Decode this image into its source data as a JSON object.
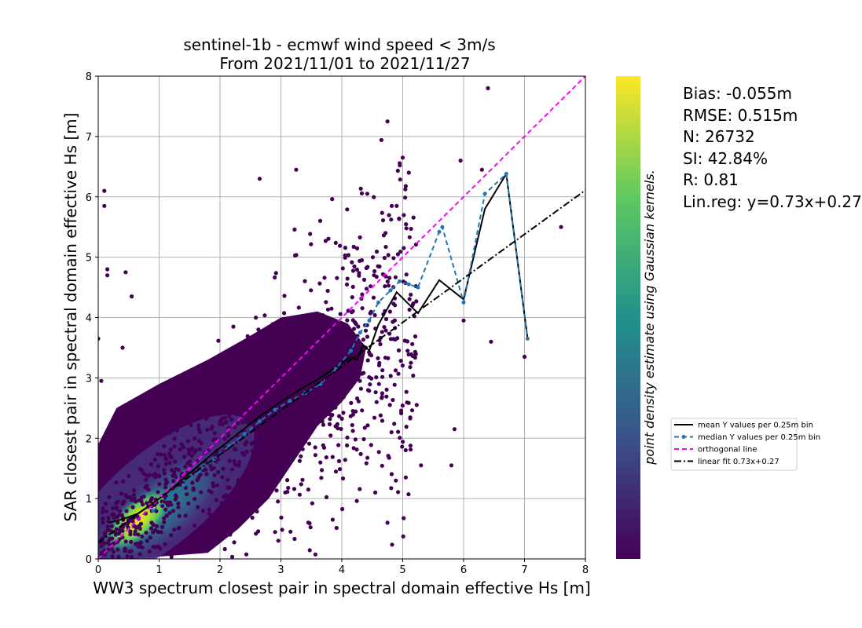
{
  "chart_data": {
    "type": "scatter",
    "title": [
      "sentinel-1b - ecmwf wind speed < 3m/s",
      "From 2021/11/01 to 2021/11/27"
    ],
    "xlabel": "WW3 spectrum closest pair in spectral domain effective Hs [m]",
    "ylabel": "SAR closest pair in spectral domain effective Hs [m]",
    "xlim": [
      0,
      8
    ],
    "ylim": [
      0,
      8
    ],
    "xticks": [
      "0",
      "1",
      "2",
      "3",
      "4",
      "5",
      "6",
      "7",
      "8"
    ],
    "yticks": [
      "0",
      "1",
      "2",
      "3",
      "4",
      "5",
      "6",
      "7",
      "8"
    ],
    "grid": true,
    "colorbar_label": "point density estimate using Gaussian kernels.",
    "colormap": [
      "#440154",
      "#3b528b",
      "#21918c",
      "#5ec962",
      "#fde725"
    ],
    "stats": [
      "Bias: -0.055m",
      "RMSE: 0.515m",
      "N: 26732",
      "SI: 42.84%",
      "R: 0.81",
      "Lin.reg: y=0.73x+0.27"
    ],
    "legend_position": "center-right, outside axes",
    "series": [
      {
        "name": "mean Y values per 0.25m bin",
        "style": "solid",
        "color": "#000000",
        "x": [
          0.18,
          0.4,
          0.65,
          0.9,
          1.15,
          1.4,
          1.65,
          1.9,
          2.15,
          2.4,
          2.65,
          2.9,
          3.15,
          3.4,
          3.65,
          3.9,
          4.15,
          4.25,
          4.35,
          4.45,
          4.6,
          4.9,
          5.25,
          5.6,
          6.0,
          6.35,
          6.7,
          7.05
        ],
        "y": [
          0.6,
          0.66,
          0.75,
          0.92,
          1.12,
          1.33,
          1.55,
          1.76,
          1.96,
          2.16,
          2.36,
          2.54,
          2.7,
          2.86,
          3.0,
          3.18,
          3.35,
          3.3,
          3.55,
          3.45,
          3.88,
          4.42,
          4.07,
          4.62,
          4.3,
          5.8,
          6.38,
          3.65
        ]
      },
      {
        "name": "median Y values per 0.25m bin",
        "style": "dashed",
        "marker": "dot",
        "color": "#1f77b4",
        "x": [
          0.9,
          1.15,
          1.4,
          1.65,
          1.9,
          2.15,
          2.4,
          2.65,
          2.9,
          3.15,
          3.4,
          3.65,
          3.9,
          4.15,
          4.3,
          4.45,
          4.6,
          4.8,
          4.95,
          5.1,
          5.25,
          5.6,
          5.65,
          6.0,
          6.35,
          6.7,
          7.05
        ],
        "y": [
          0.8,
          1.0,
          1.22,
          1.45,
          1.66,
          1.87,
          2.07,
          2.28,
          2.47,
          2.62,
          2.75,
          2.9,
          3.15,
          3.45,
          3.75,
          3.95,
          4.25,
          4.45,
          4.6,
          4.55,
          4.5,
          5.42,
          5.5,
          4.25,
          6.05,
          6.38,
          3.65
        ]
      },
      {
        "name": "orthogonal line",
        "style": "dashed",
        "color": "#ff00ff",
        "x": [
          0,
          8
        ],
        "y": [
          0,
          8
        ]
      },
      {
        "name": "linear fit 0.73x+0.27",
        "style": "dashdot",
        "color": "#000000",
        "x": [
          0,
          8
        ],
        "y": [
          0.27,
          6.11
        ]
      }
    ]
  }
}
